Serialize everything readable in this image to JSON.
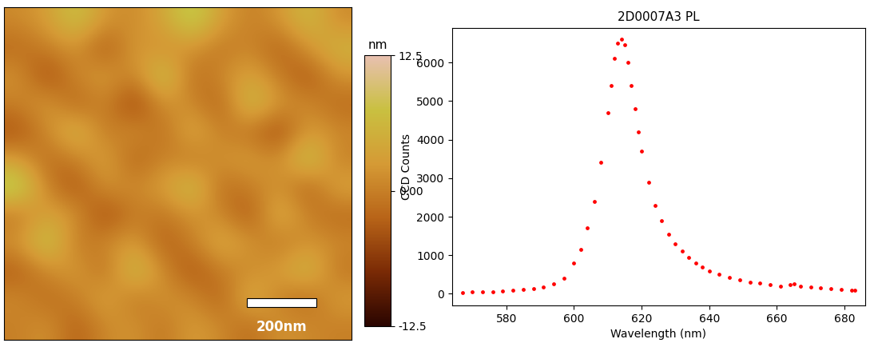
{
  "chart_data": [
    {
      "type": "heatmap",
      "tick_labels": false,
      "annotations": [
        "200nm"
      ],
      "colorbar_label": "nm",
      "colorbar_range": [
        -12.5,
        12.5
      ],
      "colorbar_ticks": [
        -12.5,
        {
          "value": 0,
          "label": "0.00"
        },
        12.5
      ],
      "cells": [
        [
          1,
          3,
          8,
          2,
          1,
          4,
          10,
          3,
          0,
          2,
          7,
          1
        ],
        [
          -2,
          0,
          2,
          -4,
          3,
          1,
          2,
          -1,
          1,
          -3,
          2,
          6
        ],
        [
          2,
          -5,
          1,
          3,
          0,
          9,
          -2,
          1,
          4,
          0,
          -4,
          2
        ],
        [
          0,
          3,
          -3,
          1,
          -6,
          2,
          1,
          -3,
          8,
          2,
          1,
          -2
        ],
        [
          -4,
          1,
          7,
          -1,
          2,
          -2,
          5,
          0,
          -1,
          -5,
          3,
          1
        ],
        [
          3,
          -2,
          0,
          4,
          -3,
          1,
          -1,
          2,
          3,
          1,
          9,
          0
        ],
        [
          11,
          0,
          -4,
          2,
          1,
          3,
          8,
          -2,
          0,
          2,
          -3,
          4
        ],
        [
          -1,
          4,
          2,
          -5,
          0,
          -1,
          2,
          1,
          -4,
          6,
          0,
          -2
        ],
        [
          2,
          9,
          -1,
          1,
          3,
          -3,
          0,
          5,
          2,
          -1,
          2,
          1
        ],
        [
          -3,
          1,
          3,
          -2,
          8,
          1,
          -4,
          0,
          1,
          3,
          7,
          -1
        ],
        [
          1,
          -2,
          0,
          4,
          -1,
          2,
          1,
          -3,
          6,
          0,
          -2,
          3
        ],
        [
          0,
          2,
          -3,
          1,
          2,
          -1,
          3,
          1,
          -2,
          2,
          1,
          0
        ]
      ]
    },
    {
      "type": "scatter",
      "title": "2D0007A3 PL",
      "x_label": "Wavelength (nm)",
      "y_label": "CCD Counts",
      "color": "#ff0000",
      "marker": "o",
      "x": [
        567,
        570,
        573,
        576,
        579,
        582,
        585,
        588,
        591,
        594,
        597,
        600,
        602,
        604,
        606,
        608,
        610,
        611,
        612,
        613,
        614,
        615,
        616,
        617,
        618,
        619,
        620,
        622,
        624,
        626,
        628,
        630,
        632,
        634,
        636,
        638,
        640,
        643,
        646,
        649,
        652,
        655,
        658,
        661,
        664,
        665,
        667,
        670,
        673,
        676,
        679,
        682,
        683
      ],
      "values": [
        40,
        45,
        50,
        60,
        70,
        85,
        110,
        140,
        180,
        260,
        400,
        800,
        1150,
        1700,
        2400,
        3400,
        4700,
        5400,
        6100,
        6500,
        6600,
        6450,
        6000,
        5400,
        4800,
        4200,
        3700,
        2900,
        2300,
        1900,
        1550,
        1300,
        1100,
        950,
        800,
        700,
        600,
        500,
        420,
        360,
        300,
        270,
        230,
        200,
        230,
        260,
        200,
        170,
        150,
        130,
        115,
        100,
        95
      ],
      "xlim": [
        564,
        686
      ],
      "xticks": [
        580,
        600,
        620,
        640,
        660,
        680
      ],
      "ylim": [
        -300,
        6900
      ],
      "yticks": [
        0,
        1000,
        2000,
        3000,
        4000,
        5000,
        6000
      ]
    }
  ]
}
